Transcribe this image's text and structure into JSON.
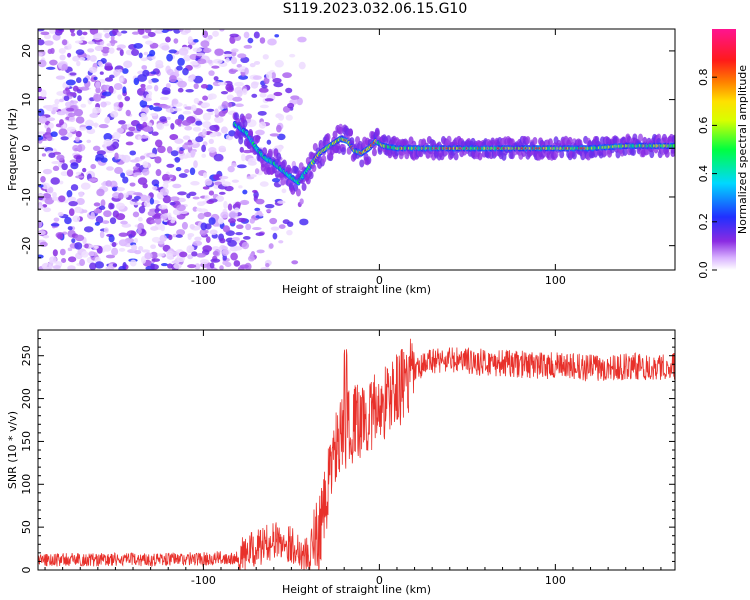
{
  "title": "S119.2023.032.06.15.G10",
  "colors": {
    "snr_line": "#e8302a",
    "axis": "#000000"
  },
  "chart_data": [
    {
      "type": "heatmap",
      "xlabel": "Height of straight line (km)",
      "ylabel": "Frequency (Hz)",
      "xlim": [
        -194,
        168
      ],
      "ylim": [
        -25,
        24.5
      ],
      "xticks": [
        -100,
        0,
        100
      ],
      "xtick_labels": [
        "-100",
        "0",
        "100"
      ],
      "yticks": [
        -20,
        -10,
        0,
        10,
        20
      ],
      "ytick_labels": [
        "-20",
        "-10",
        "0",
        "10",
        "20"
      ],
      "colorbar": {
        "label": "Normalized spectral amplitude",
        "range": [
          0,
          1
        ],
        "ticks": [
          0.0,
          0.2,
          0.4,
          0.6,
          0.8
        ],
        "tick_labels": [
          "0.0",
          "0.2",
          "0.4",
          "0.6",
          "0.8"
        ],
        "colormap": "rainbow (white-purple-blue-cyan-green-yellow-orange-red-magenta)"
      },
      "ridge": {
        "x": [
          -82,
          -75,
          -70,
          -65,
          -60,
          -55,
          -50,
          -46,
          -42,
          -38,
          -34,
          -30,
          -26,
          -22,
          -18,
          -14,
          -10,
          -6,
          -2,
          2,
          10,
          20,
          40,
          60,
          80,
          100,
          120,
          140,
          168
        ],
        "y": [
          5,
          3,
          0,
          -2,
          -3,
          -4.5,
          -6,
          -7,
          -5,
          -3,
          -1,
          0,
          1,
          2,
          1.5,
          -0.5,
          -1,
          0,
          1.5,
          0.5,
          0,
          0,
          0,
          0,
          0,
          0,
          0,
          0.5,
          0.5
        ]
      },
      "noise_region_x": [
        -194,
        -80
      ]
    },
    {
      "type": "line",
      "xlabel": "Height of straight line (km)",
      "ylabel": "SNR (10 * v/v)",
      "xlim": [
        -194,
        168
      ],
      "ylim": [
        0,
        280
      ],
      "xticks": [
        -100,
        0,
        100
      ],
      "xtick_labels": [
        "-100",
        "0",
        "100"
      ],
      "yticks": [
        0,
        50,
        100,
        150,
        200,
        250
      ],
      "ytick_labels": [
        "0",
        "50",
        "100",
        "150",
        "200",
        "250"
      ],
      "trend": {
        "x": [
          -194,
          -150,
          -100,
          -80,
          -70,
          -60,
          -50,
          -40,
          -35,
          -30,
          -28,
          -25,
          -20,
          -15,
          -10,
          -5,
          0,
          10,
          20,
          30,
          40,
          60,
          80,
          100,
          120,
          140,
          168
        ],
        "y": [
          12,
          12,
          13,
          15,
          25,
          35,
          30,
          15,
          40,
          80,
          120,
          140,
          160,
          170,
          175,
          180,
          190,
          210,
          230,
          245,
          245,
          242,
          240,
          238,
          236,
          237,
          238
        ]
      },
      "noise_amplitude": [
        {
          "x_from": -194,
          "x_to": -80,
          "amp": 8
        },
        {
          "x_from": -80,
          "x_to": -40,
          "amp": 22
        },
        {
          "x_from": -40,
          "x_to": 20,
          "amp": 45
        },
        {
          "x_from": 20,
          "x_to": 168,
          "amp": 16
        }
      ]
    }
  ]
}
